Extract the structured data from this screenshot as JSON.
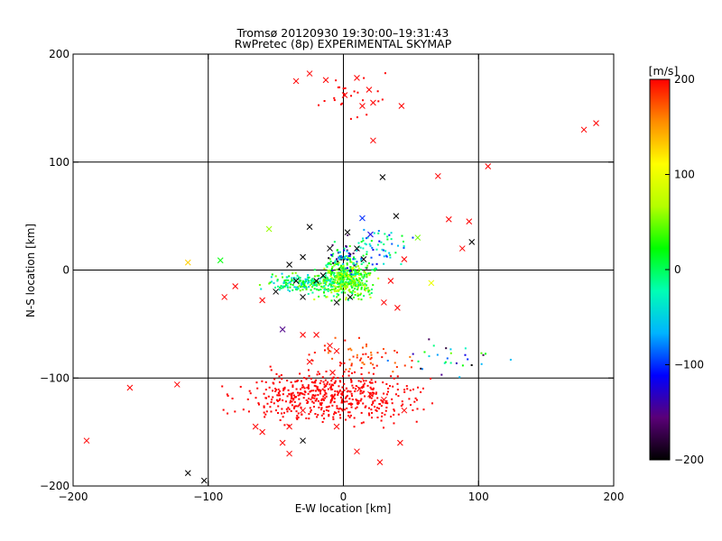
{
  "chart_data": {
    "type": "scatter",
    "title": "Tromsø 20120930 19:30:00–19:31:43",
    "subtitle": "RwPretec (8p) EXPERIMENTAL SKYMAP",
    "xlabel": "E-W location [km]",
    "ylabel": "N-S location [km]",
    "xlim": [
      -200,
      200
    ],
    "ylim": [
      -200,
      200
    ],
    "xticks": [
      -200,
      -100,
      0,
      100,
      200
    ],
    "yticks": [
      -200,
      -100,
      0,
      100,
      200
    ],
    "grid": true,
    "colorbar": {
      "label": "[m/s]",
      "range": [
        -200,
        200
      ],
      "ticks": [
        200,
        100,
        0,
        -100,
        -200
      ],
      "colormap": [
        "#000000",
        "#5a0078",
        "#0000ff",
        "#00b4ff",
        "#00ffb4",
        "#00ff00",
        "#b4ff00",
        "#ffff00",
        "#ff8c00",
        "#ff0000"
      ]
    },
    "series": [
      {
        "marker": "x",
        "points": [
          [
            -35,
            175,
            200
          ],
          [
            -25,
            182,
            200
          ],
          [
            -13,
            176,
            200
          ],
          [
            1,
            162,
            200
          ],
          [
            10,
            178,
            200
          ],
          [
            19,
            167,
            200
          ],
          [
            14,
            152,
            200
          ],
          [
            22,
            155,
            200
          ],
          [
            43,
            152,
            200
          ],
          [
            22,
            120,
            200
          ],
          [
            178,
            130,
            200
          ],
          [
            187,
            136,
            200
          ],
          [
            107,
            96,
            200
          ],
          [
            70,
            87,
            200
          ],
          [
            78,
            47,
            200
          ],
          [
            93,
            45,
            200
          ],
          [
            88,
            20,
            200
          ],
          [
            95,
            26,
            -200
          ],
          [
            29,
            86,
            -200
          ],
          [
            39,
            50,
            -200
          ],
          [
            -55,
            38,
            60
          ],
          [
            -91,
            9,
            20
          ],
          [
            -115,
            7,
            130
          ],
          [
            -88,
            -25,
            200
          ],
          [
            -80,
            -15,
            200
          ],
          [
            -60,
            -28,
            200
          ],
          [
            -50,
            -20,
            -200
          ],
          [
            -35,
            -10,
            -200
          ],
          [
            -30,
            -25,
            -200
          ],
          [
            -20,
            -10,
            -200
          ],
          [
            -15,
            -5,
            -200
          ],
          [
            -5,
            -30,
            -200
          ],
          [
            -10,
            20,
            -200
          ],
          [
            -25,
            40,
            -200
          ],
          [
            -30,
            12,
            -200
          ],
          [
            -40,
            5,
            -200
          ],
          [
            10,
            20,
            -200
          ],
          [
            15,
            10,
            -200
          ],
          [
            5,
            -25,
            -200
          ],
          [
            3,
            35,
            -200
          ],
          [
            45,
            10,
            200
          ],
          [
            35,
            -10,
            200
          ],
          [
            30,
            -30,
            200
          ],
          [
            40,
            -35,
            200
          ],
          [
            55,
            30,
            50
          ],
          [
            -45,
            -55,
            -150
          ],
          [
            -30,
            -60,
            200
          ],
          [
            -20,
            -60,
            200
          ],
          [
            -10,
            -70,
            200
          ],
          [
            -5,
            -75,
            200
          ],
          [
            -25,
            -85,
            200
          ],
          [
            -8,
            -95,
            200
          ],
          [
            12,
            -110,
            200
          ],
          [
            20,
            -115,
            200
          ],
          [
            30,
            -120,
            200
          ],
          [
            45,
            -130,
            200
          ],
          [
            -30,
            -130,
            200
          ],
          [
            -40,
            -145,
            200
          ],
          [
            -45,
            -160,
            200
          ],
          [
            -30,
            -158,
            -200
          ],
          [
            -60,
            -150,
            200
          ],
          [
            -65,
            -145,
            200
          ],
          [
            -190,
            -158,
            200
          ],
          [
            -158,
            -109,
            200
          ],
          [
            -123,
            -106,
            200
          ],
          [
            -115,
            -188,
            -200
          ],
          [
            -103,
            -195,
            -200
          ],
          [
            10,
            -168,
            200
          ],
          [
            27,
            -178,
            200
          ],
          [
            42,
            -160,
            200
          ],
          [
            -40,
            -170,
            200
          ],
          [
            -5,
            -145,
            200
          ],
          [
            20,
            33,
            -120
          ],
          [
            14,
            48,
            -100
          ],
          [
            65,
            -12,
            100
          ],
          [
            0,
            0,
            0
          ]
        ]
      }
    ]
  }
}
